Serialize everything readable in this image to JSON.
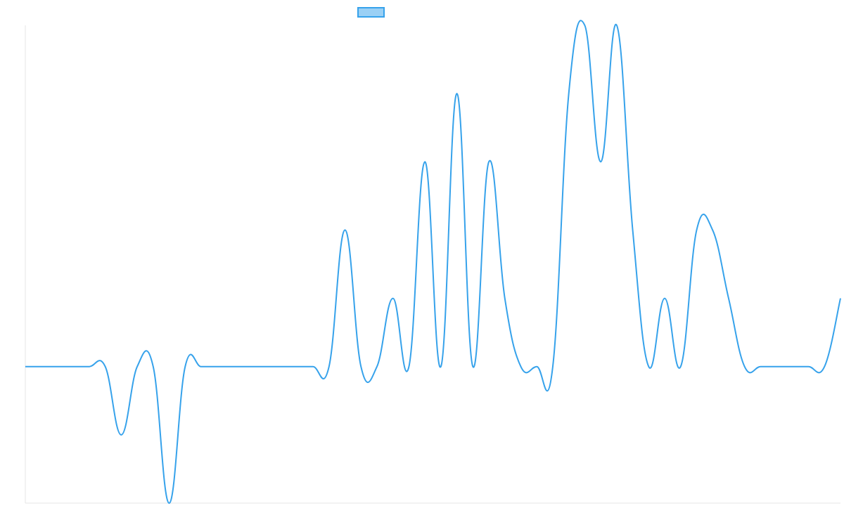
{
  "chart_data": {
    "type": "line",
    "title": "",
    "xlabel": "",
    "ylabel": "",
    "legend": {
      "position": "top",
      "label": ""
    },
    "grid": false,
    "colors": {
      "line": "#36a2eb",
      "legend_fill": "#9ad0f5",
      "axis": "#e5e5e5"
    },
    "ylim": [
      -2,
      5
    ],
    "x": [
      0,
      1,
      2,
      3,
      4,
      5,
      6,
      7,
      8,
      9,
      10,
      11,
      12,
      13,
      14,
      15,
      16,
      17,
      18,
      19,
      20,
      21,
      22,
      23,
      24,
      25,
      26,
      27,
      28,
      29,
      30,
      31,
      32,
      33,
      34,
      35,
      36,
      37,
      38,
      39,
      40,
      41,
      42,
      43,
      44,
      45,
      46,
      47,
      48,
      49,
      50,
      51
    ],
    "series": [
      {
        "values": [
          0,
          0,
          0,
          0,
          0,
          0,
          -1,
          0,
          0,
          -2,
          0,
          0,
          0,
          0,
          0,
          0,
          0,
          0,
          0,
          0,
          2,
          0,
          0,
          1,
          0,
          3,
          0,
          4,
          0,
          3,
          1,
          0,
          0,
          0,
          4,
          5,
          3,
          5,
          2,
          0,
          1,
          0,
          2,
          2,
          1,
          0,
          0,
          0,
          0,
          0,
          0,
          1
        ]
      }
    ]
  }
}
